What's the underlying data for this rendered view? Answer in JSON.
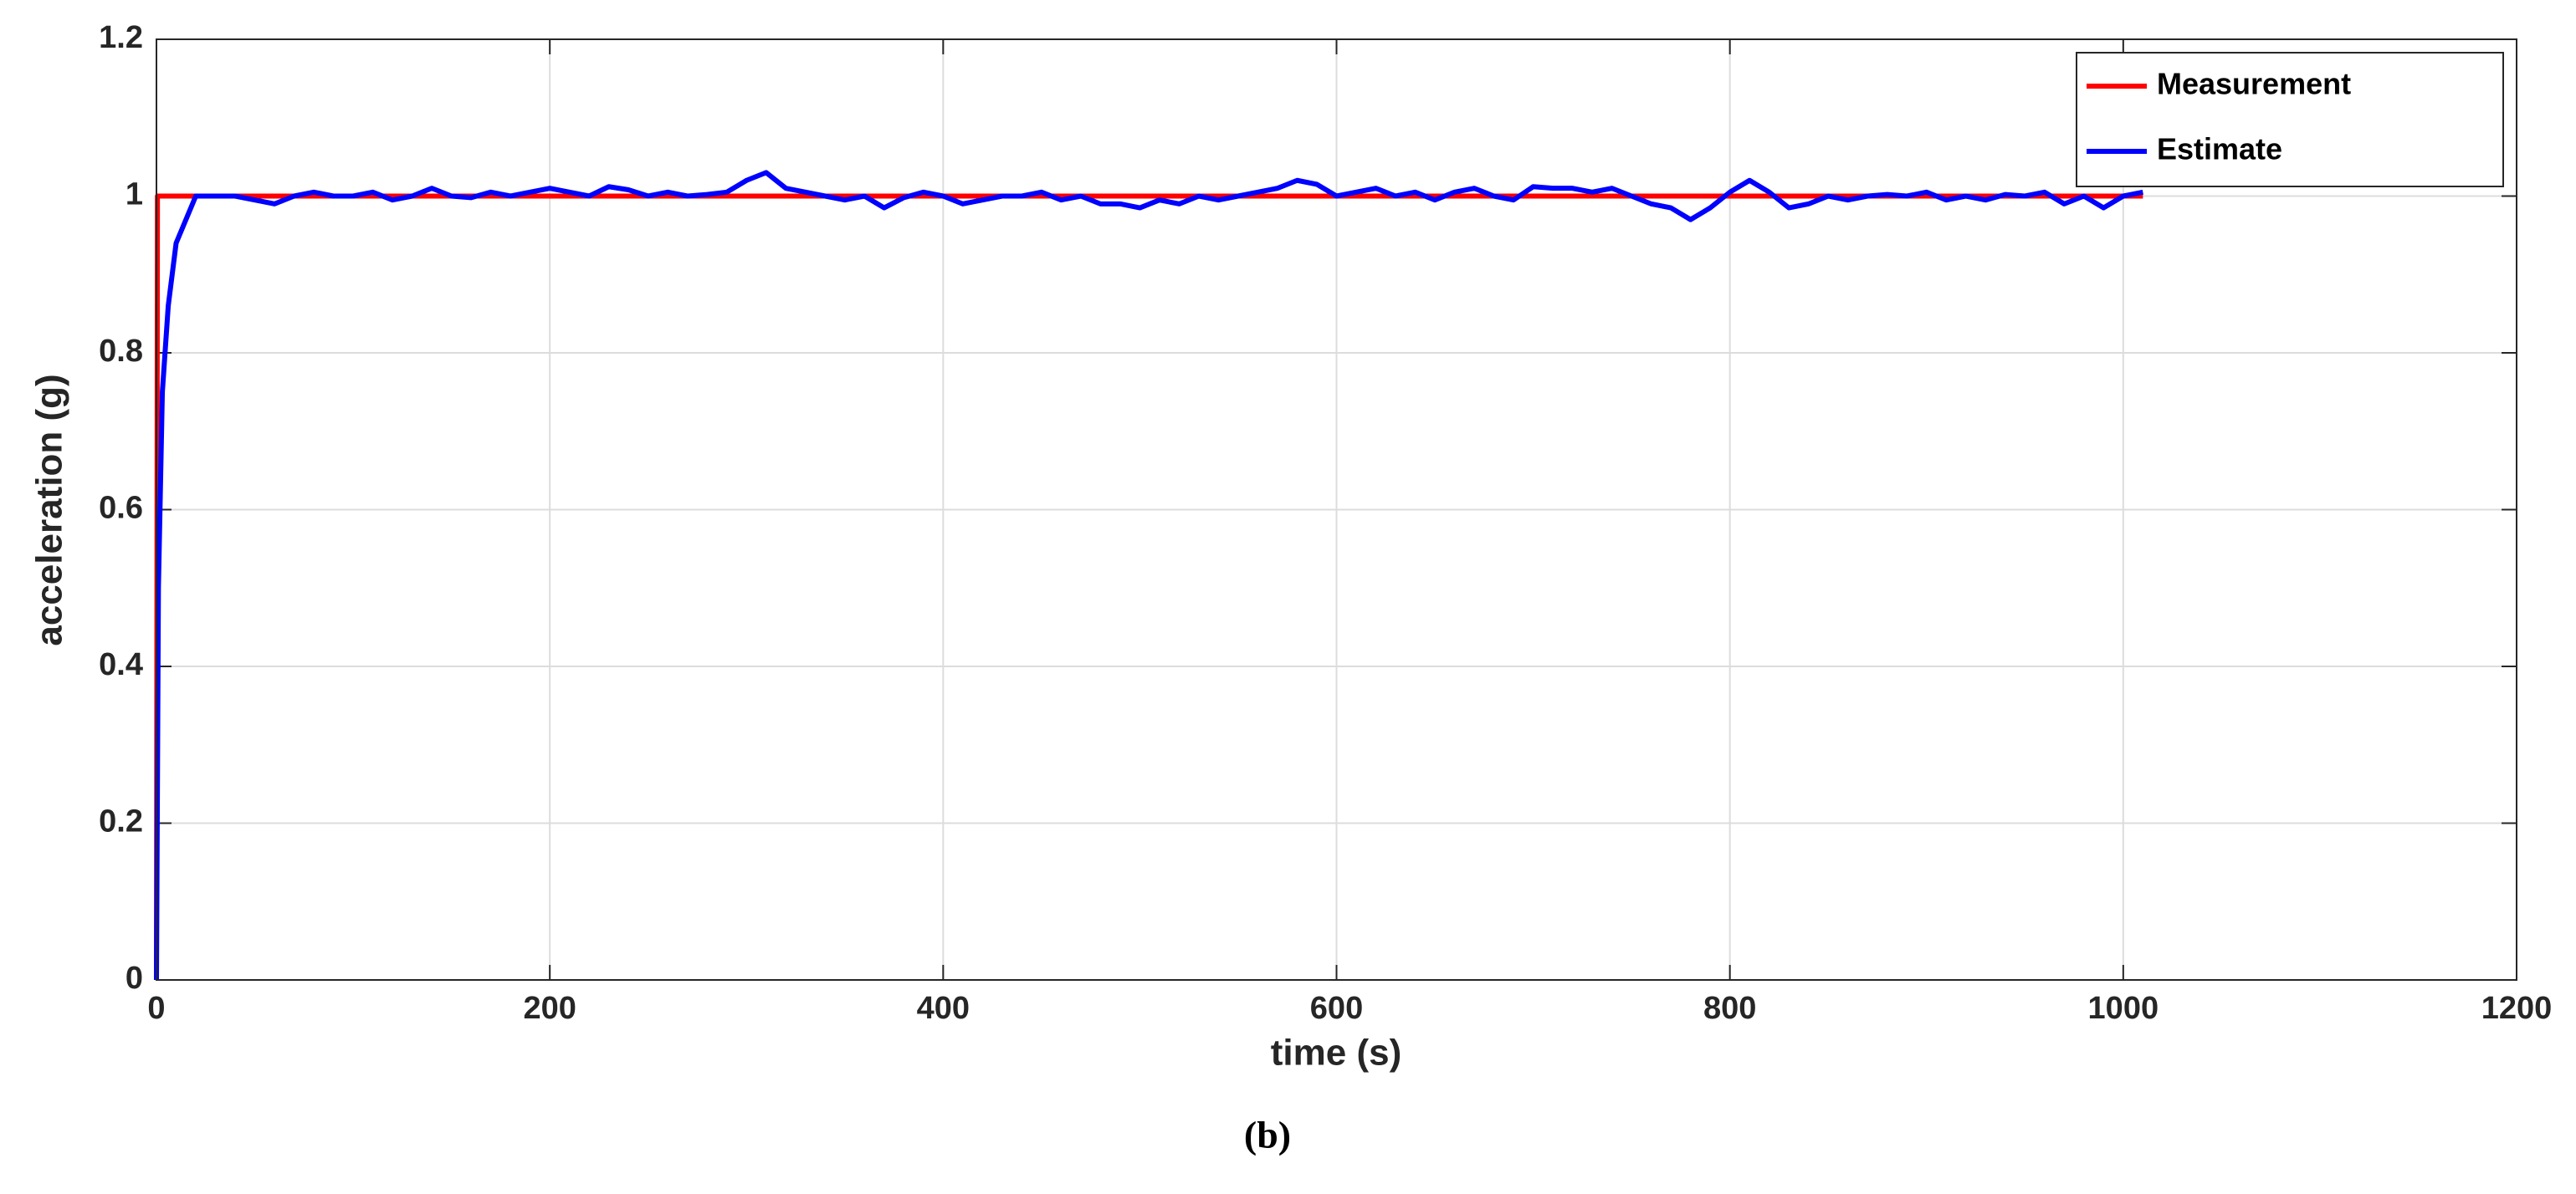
{
  "chart_data": {
    "type": "line",
    "xlabel": "time (s)",
    "ylabel": "acceleration (g)",
    "caption": "(b)",
    "xlim": [
      0,
      1200
    ],
    "xticks": [
      0,
      200,
      400,
      600,
      800,
      1000,
      1200
    ],
    "ylim": [
      0,
      1.2
    ],
    "yticks": [
      0,
      0.2,
      0.4,
      0.6,
      0.8,
      1,
      1.2
    ],
    "grid": true,
    "legend": "upper-right",
    "series": [
      {
        "name": "Measurement",
        "color": "#ff0000",
        "x": [
          0,
          0.5,
          1010
        ],
        "values": [
          0,
          1,
          1
        ]
      },
      {
        "name": "Estimate",
        "color": "#0000ff",
        "x": [
          0,
          1,
          3,
          6,
          10,
          15,
          20,
          30,
          40,
          50,
          60,
          70,
          80,
          90,
          100,
          110,
          120,
          130,
          140,
          150,
          160,
          170,
          180,
          190,
          200,
          210,
          220,
          230,
          240,
          250,
          260,
          270,
          280,
          290,
          300,
          310,
          320,
          330,
          340,
          350,
          360,
          370,
          380,
          390,
          400,
          410,
          420,
          430,
          440,
          450,
          460,
          470,
          480,
          490,
          500,
          510,
          520,
          530,
          540,
          550,
          560,
          570,
          580,
          590,
          600,
          610,
          620,
          630,
          640,
          650,
          660,
          670,
          680,
          690,
          700,
          710,
          720,
          730,
          740,
          750,
          760,
          770,
          780,
          790,
          800,
          810,
          820,
          830,
          840,
          850,
          860,
          870,
          880,
          890,
          900,
          910,
          920,
          930,
          940,
          950,
          960,
          970,
          980,
          990,
          1000,
          1010
        ],
        "values": [
          0,
          0.5,
          0.75,
          0.86,
          0.94,
          0.97,
          1.0,
          1.0,
          1.0,
          0.995,
          0.99,
          1.0,
          1.005,
          1.0,
          1.0,
          1.005,
          0.995,
          1.0,
          1.01,
          1.0,
          0.998,
          1.005,
          1.0,
          1.005,
          1.01,
          1.005,
          1.0,
          1.012,
          1.008,
          1.0,
          1.005,
          1.0,
          1.002,
          1.005,
          1.02,
          1.03,
          1.01,
          1.005,
          1.0,
          0.995,
          1.0,
          0.985,
          0.998,
          1.005,
          1.0,
          0.99,
          0.995,
          1.0,
          1.0,
          1.005,
          0.995,
          1.0,
          0.99,
          0.99,
          0.985,
          0.995,
          0.99,
          1.0,
          0.995,
          1.0,
          1.005,
          1.01,
          1.02,
          1.015,
          1.0,
          1.005,
          1.01,
          1.0,
          1.005,
          0.995,
          1.005,
          1.01,
          1.0,
          0.995,
          1.012,
          1.01,
          1.01,
          1.005,
          1.01,
          1.0,
          0.99,
          0.985,
          0.97,
          0.985,
          1.005,
          1.02,
          1.005,
          0.985,
          0.99,
          1.0,
          0.995,
          1.0,
          1.002,
          1.0,
          1.005,
          0.995,
          1.0,
          0.995,
          1.002,
          1.0,
          1.005,
          0.99,
          1.0,
          0.985,
          1.0,
          1.005
        ]
      }
    ]
  }
}
